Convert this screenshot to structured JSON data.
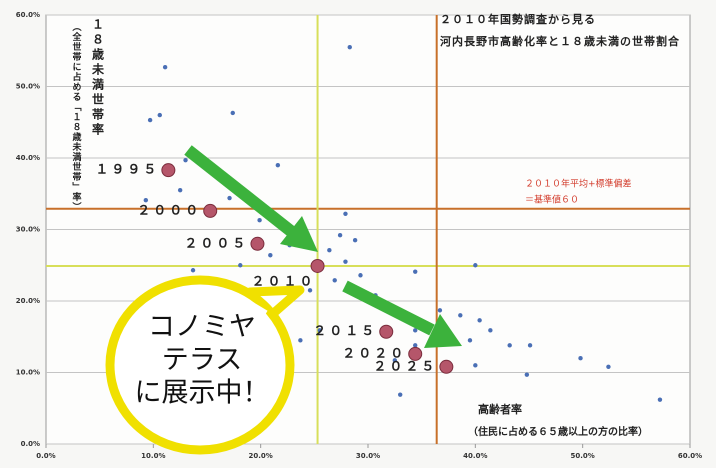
{
  "chart_data": {
    "type": "scatter",
    "title": [
      "２０１０年国勢調査から見る",
      "河内長野市高齢化率と１８歳未満の世帯割合"
    ],
    "y_label": [
      "１８歳未満世帯率",
      "（全世帯に占める「１８歳未満世帯」率）"
    ],
    "x_label": [
      "高齢者率",
      "（住民に占める６５歳以上の方の比率）"
    ],
    "xlim": [
      0,
      60
    ],
    "ylim": [
      0,
      60
    ],
    "xticks": [
      {
        "value": 0,
        "label": "0.0%"
      },
      {
        "value": 10,
        "label": "10.0%"
      },
      {
        "value": 20,
        "label": "20.0%"
      },
      {
        "value": 30,
        "label": "30.0%"
      },
      {
        "value": 40,
        "label": "40.0%"
      },
      {
        "value": 50,
        "label": "50.0%"
      },
      {
        "value": 60,
        "label": "60.0%"
      }
    ],
    "yticks": [
      {
        "value": 0,
        "label": "0.0%"
      },
      {
        "value": 10,
        "label": "10.0%"
      },
      {
        "value": 20,
        "label": "20.0%"
      },
      {
        "value": 30,
        "label": "30.0%"
      },
      {
        "value": 40,
        "label": "40.0%"
      },
      {
        "value": 50,
        "label": "50.0%"
      },
      {
        "value": 60,
        "label": "60.0%"
      }
    ],
    "grid": true,
    "points": {
      "color": "#4a6fb5",
      "x": [
        11.1,
        28.3,
        9.7,
        17.4,
        10.6,
        13.0,
        21.6,
        9.3,
        12.5,
        17.1,
        19.9,
        23.7,
        27.9,
        27.4,
        26.4,
        28.8,
        22.7,
        20.9,
        18.1,
        13.7,
        27.9,
        29.3,
        26.9,
        24.6,
        22.3,
        28.5,
        30.7,
        32.5,
        34.4,
        36.7,
        38.6,
        40.4,
        41.4,
        39.5,
        43.2,
        34.4,
        32.5,
        33.0,
        34.4,
        40.0,
        44.8,
        49.8,
        52.4,
        57.2,
        40.0,
        45.1,
        25.5,
        23.7
      ],
      "y": [
        52.7,
        55.5,
        45.3,
        46.3,
        46.0,
        39.7,
        39.0,
        34.1,
        35.5,
        34.4,
        31.3,
        31.0,
        32.2,
        29.2,
        27.1,
        28.5,
        27.8,
        26.4,
        25.0,
        24.3,
        25.5,
        23.6,
        22.9,
        21.5,
        20.8,
        21.5,
        20.8,
        18.7,
        15.9,
        18.7,
        18.0,
        17.3,
        15.9,
        14.5,
        13.8,
        13.8,
        11.7,
        6.9,
        24.1,
        25.0,
        9.7,
        12.0,
        10.8,
        6.2,
        11.0,
        13.8,
        15.9,
        14.5
      ]
    },
    "highlight": {
      "color": "#b5566a",
      "labels": [
        "１９９５",
        "２０００",
        "２００５",
        "２０１０",
        "２０１５",
        "２０２０",
        "２０２５"
      ],
      "x": [
        11.4,
        15.3,
        19.7,
        25.3,
        31.7,
        34.4,
        37.3
      ],
      "y": [
        38.3,
        32.6,
        28.0,
        24.9,
        15.7,
        12.6,
        10.8
      ]
    },
    "hlines": [
      {
        "value": 32.9,
        "color": "#c8702a"
      },
      {
        "value": 24.9,
        "color": "#d8df5a"
      }
    ],
    "vlines": [
      {
        "value": 25.3,
        "color": "#d8df5a"
      },
      {
        "value": 36.4,
        "color": "#c8702a"
      }
    ],
    "annotation": {
      "lines": [
        "２０１０年平均+標準偏差",
        "＝基準値６０"
      ],
      "color": "#d23a2a"
    },
    "callout": [
      "コノミヤ",
      "テラス",
      "に展示中！"
    ]
  }
}
